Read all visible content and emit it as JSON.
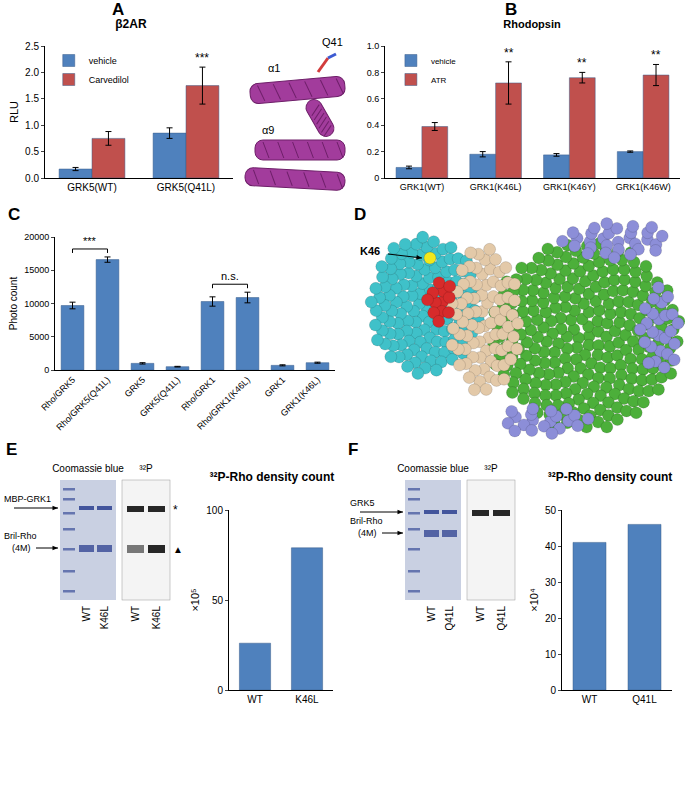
{
  "chart_data": [
    {
      "panel": "A",
      "type": "bar",
      "title": "β2AR",
      "y_label": "RLU",
      "categories": [
        "GRK5(WT)",
        "GRK5(Q41L)"
      ],
      "series": [
        {
          "name": "vehicle",
          "color": "#4f81bd",
          "values": [
            0.17,
            0.85
          ],
          "errors": [
            0.03,
            0.1
          ]
        },
        {
          "name": "Carvedilol",
          "color": "#c0504d",
          "values": [
            0.75,
            1.75
          ],
          "errors": [
            0.13,
            0.35
          ]
        }
      ],
      "ylim": [
        0,
        2.5
      ],
      "yticks": [
        {
          "value": 0,
          "label": "0.0"
        },
        0.5,
        {
          "value": 1,
          "label": "1.0"
        },
        1.5,
        {
          "value": 2,
          "label": "2.0"
        },
        2.5
      ],
      "legend": "upper left",
      "annotations": [
        {
          "text": "***",
          "category": "GRK5(Q41L)",
          "series": "Carvedilol"
        }
      ]
    },
    {
      "panel": "B",
      "type": "bar",
      "title": "Rhodopsin",
      "categories": [
        "GRK1(WT)",
        "GRK1(K46L)",
        "GRK1(K46Y)",
        "GRK1(K46W)"
      ],
      "series": [
        {
          "name": "vehicle",
          "color": "#4f81bd",
          "values": [
            0.08,
            0.18,
            0.175,
            0.2
          ],
          "errors": [
            0.01,
            0.02,
            0.01,
            0.005
          ]
        },
        {
          "name": "ATR",
          "color": "#c0504d",
          "values": [
            0.39,
            0.72,
            0.76,
            0.78
          ],
          "errors": [
            0.03,
            0.16,
            0.04,
            0.08
          ]
        }
      ],
      "ylim": [
        0,
        1
      ],
      "yticks": [
        0,
        0.2,
        0.4,
        0.6,
        0.8,
        {
          "value": 1,
          "label": "1.0"
        }
      ],
      "legend": "upper left",
      "annotations": [
        {
          "text": "**",
          "category": "GRK1(K46L)",
          "series": "ATR"
        },
        {
          "text": "**",
          "category": "GRK1(K46Y)",
          "series": "ATR"
        },
        {
          "text": "**",
          "category": "GRK1(K46W)",
          "series": "ATR"
        }
      ]
    },
    {
      "panel": "C",
      "type": "bar",
      "y_label": "Photo count",
      "categories": [
        "Rho/GRK5",
        "Rho/GRK5(Q41L)",
        "GRK5",
        "GRK5(Q41L)",
        "Rho/GRK1",
        "Rho/GRK1(K46L)",
        "GRK1",
        "GRK1(K46L)"
      ],
      "values": [
        9700,
        16600,
        1000,
        500,
        10300,
        10900,
        700,
        1100
      ],
      "errors": [
        500,
        400,
        100,
        50,
        700,
        800,
        80,
        80
      ],
      "color": "#4f81bd",
      "ylim": [
        0,
        20000
      ],
      "yticks": [
        0,
        5000,
        10000,
        15000,
        20000
      ],
      "annotations": [
        {
          "text": "***",
          "from": "Rho/GRK5",
          "to": "Rho/GRK5(Q41L)"
        },
        {
          "text": "n.s.",
          "from": "Rho/GRK1",
          "to": "Rho/GRK1(K46L)"
        }
      ]
    },
    {
      "type": "bar",
      "title": "³²P-Rho density count",
      "y_label": "×10⁵",
      "categories": [
        "WT",
        "K46L"
      ],
      "values": [
        26,
        79
      ],
      "color": "#4f81bd",
      "ylim": [
        0,
        100
      ],
      "yticks": [
        0,
        50,
        100
      ]
    },
    {
      "type": "bar",
      "title": "³²P-Rho density count",
      "y_label": "×10⁴",
      "categories": [
        "WT",
        "Q41L"
      ],
      "values": [
        41,
        46
      ],
      "color": "#4f81bd",
      "ylim": [
        0,
        50
      ],
      "yticks": [
        0,
        10,
        20,
        30,
        40,
        50
      ]
    }
  ],
  "structure_A": {
    "helix_1": "α1",
    "residue": "Q41",
    "helix_2": "α9"
  },
  "structure_D": {
    "panel": "D",
    "label": "K46"
  },
  "gels": [
    {
      "panel": "E",
      "headers": [
        "Coomassie blue",
        "³²P"
      ],
      "band_labels": [
        "MBP-GRK1",
        "Bril-Rho (4M)"
      ],
      "band_marks": [
        "*",
        "▲"
      ],
      "lanes": [
        "WT",
        "K46L"
      ]
    },
    {
      "panel": "F",
      "headers": [
        "Coomassie blue",
        "³²P"
      ],
      "band_labels": [
        "GRK5",
        "Bril-Rho (4M)"
      ],
      "lanes": [
        "WT",
        "Q41L"
      ]
    }
  ]
}
